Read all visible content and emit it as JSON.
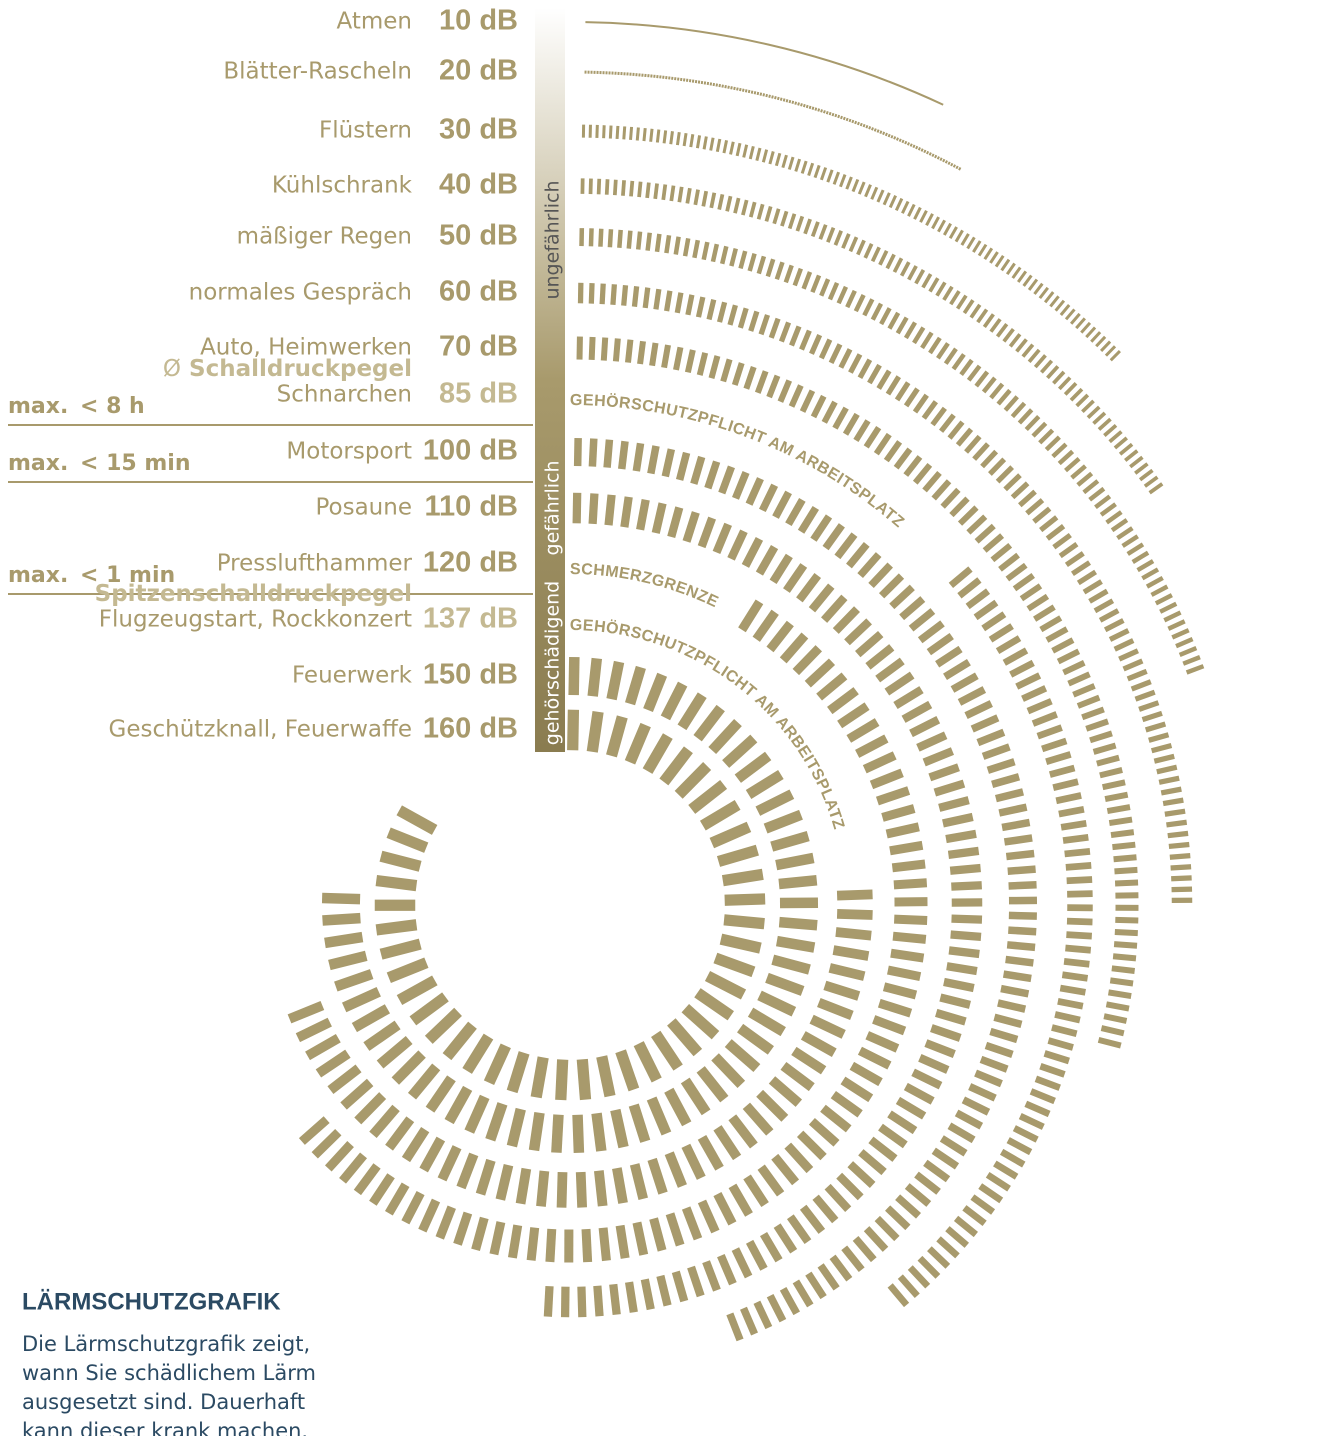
{
  "rows": [
    {
      "label": "Atmen",
      "value": "10 dB"
    },
    {
      "label": "Blätter-Rascheln",
      "value": "20 dB"
    },
    {
      "label": "Flüstern",
      "value": "30 dB"
    },
    {
      "label": "Kühlschrank",
      "value": "40 dB"
    },
    {
      "label": "mäßiger Regen",
      "value": "50 dB"
    },
    {
      "label": "normales Gespräch",
      "value": "60 dB"
    },
    {
      "label": "Auto, Heimwerken",
      "value": "70 dB"
    },
    {
      "prefix": "Ø",
      "note": "Schalldruckpegel",
      "label": "Schnarchen",
      "value": "85 dB",
      "limit": {
        "word": "max.",
        "time": "< 8 h"
      }
    },
    {
      "label": "Motorsport",
      "value": "100 dB",
      "limit": {
        "word": "max.",
        "time": "< 15 min"
      }
    },
    {
      "label": "Posaune",
      "value": "110 dB"
    },
    {
      "label": "Presslufthammer",
      "value": "120 dB",
      "limit": {
        "word": "max.",
        "time": "< 1 min"
      }
    },
    {
      "note": "Spitzenschalldruckpegel",
      "label": "Flugzeugstart, Rockkonzert",
      "value": "137 dB"
    },
    {
      "label": "Feuerwerk",
      "value": "150 dB"
    },
    {
      "label": "Geschützknall, Feuerwaffe",
      "value": "160 dB"
    }
  ],
  "scale": [
    "ungefährlich",
    "gefährlich",
    "gehörschädigend"
  ],
  "arc_labels": [
    "GEHÖRSCHUTZPFLICHT AM ARBEITSPLATZ",
    "SCHMERZGRENZE",
    "GEHÖRSCHUTZPFLICHT AM ARBEITSPLATZ"
  ],
  "info": {
    "title": "LÄRMSCHUTZGRAFIK",
    "lines": [
      "Die Lärmschutzgrafik zeigt,",
      "wann Sie schädlichem Lärm",
      "ausgesetzt sind. Dauerhaft",
      "kann dieser krank machen."
    ]
  }
}
